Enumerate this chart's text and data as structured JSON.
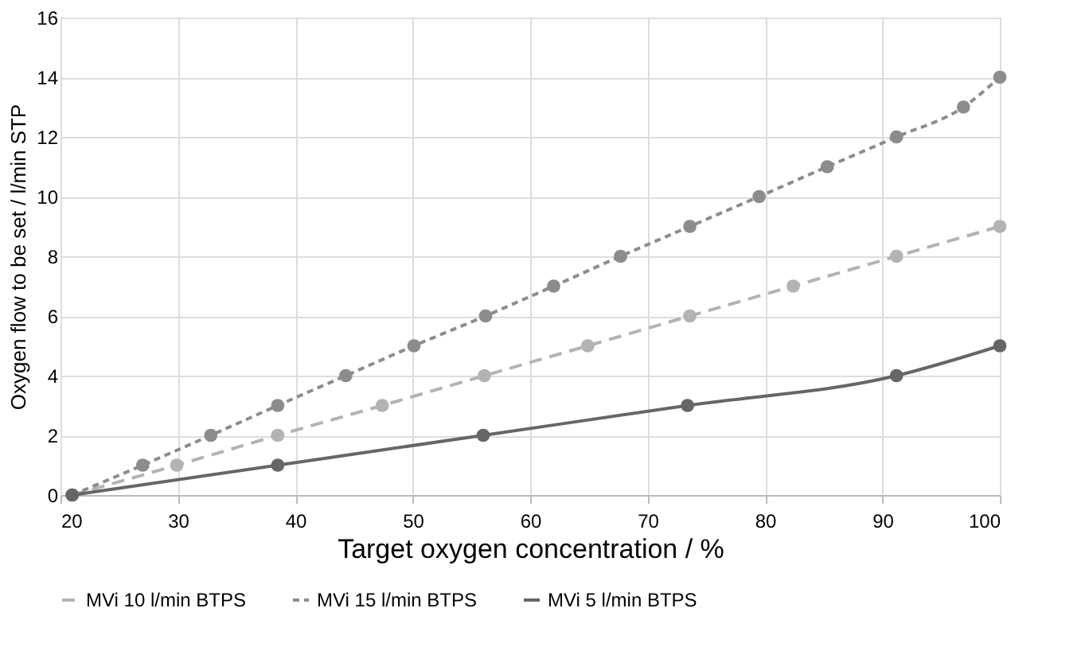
{
  "chart_data": {
    "type": "line",
    "xlabel": "Target oxygen concentration / %",
    "ylabel": "Oxygen flow to be set / l/min STP",
    "xlim": [
      20,
      100
    ],
    "xticks": [
      20,
      30,
      40,
      50,
      60,
      70,
      80,
      90,
      100
    ],
    "ylim": [
      0,
      16
    ],
    "yticks": [
      0,
      2,
      4,
      6,
      8,
      10,
      12,
      14,
      16
    ],
    "grid": true,
    "legend": "bottom",
    "marker": "circle",
    "series": [
      {
        "name": "MVi 10 l/min BTPS",
        "color": "#b3b3b3",
        "line_style": "dashed",
        "x": [
          21,
          29.9,
          38.5,
          47.4,
          56.1,
          64.9,
          73.6,
          82.4,
          91.2,
          100
        ],
        "values": [
          0,
          1,
          2,
          3,
          4,
          5,
          6,
          7,
          8,
          9
        ]
      },
      {
        "name": "MVi 15 l/min BTPS",
        "color": "#8c8c8c",
        "line_style": "dotted",
        "x": [
          21,
          27,
          32.8,
          38.5,
          44.3,
          50.1,
          56.2,
          62,
          67.7,
          73.6,
          79.5,
          85.3,
          91.2,
          96.9,
          100
        ],
        "values": [
          0,
          1,
          2,
          3,
          4,
          5,
          6,
          7,
          8,
          9,
          10,
          11,
          12,
          13,
          14
        ]
      },
      {
        "name": "MVi 5 l/min BTPS",
        "color": "#666666",
        "line_style": "solid",
        "x": [
          21,
          38.5,
          56,
          73.4,
          91.2,
          100
        ],
        "values": [
          0,
          1,
          2,
          3,
          4,
          5
        ]
      }
    ]
  }
}
